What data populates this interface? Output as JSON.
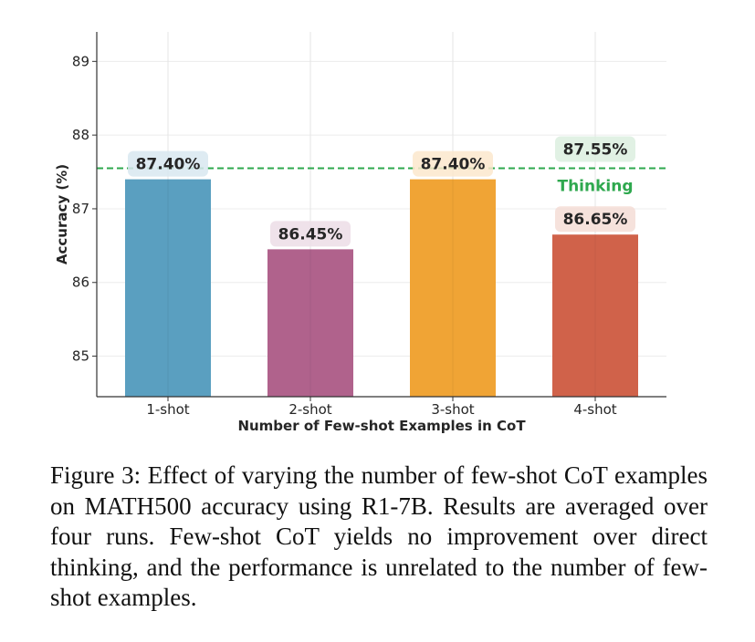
{
  "chart_data": {
    "type": "bar",
    "categories": [
      "1-shot",
      "2-shot",
      "3-shot",
      "4-shot"
    ],
    "values": [
      87.4,
      86.45,
      87.4,
      86.65
    ],
    "value_labels": [
      "87.40%",
      "86.45%",
      "87.40%",
      "86.65%"
    ],
    "colors": [
      "#5a9fc0",
      "#b0628c",
      "#f0a435",
      "#d0624a"
    ],
    "label_bg_colors": [
      "#d8e8f0",
      "#ecdde6",
      "#fbe8cc",
      "#f4ddd6"
    ],
    "xlabel": "Number of Few-shot Examples in CoT",
    "ylabel": "Accuracy (%)",
    "ylim": [
      84.45,
      89.4
    ],
    "yticks": [
      85,
      86,
      87,
      88,
      89
    ],
    "grid": true,
    "reference_line": {
      "value": 87.55,
      "value_label": "87.55%",
      "label": "Thinking",
      "color": "#2ea84e",
      "label_bg_color": "#dcefdf",
      "style": "dashed"
    }
  },
  "caption": "Figure 3: Effect of varying the number of few-shot CoT examples on MATH500 accuracy using R1-7B. Results are averaged over four runs. Few-shot CoT yields no improvement over direct thinking, and the performance is unrelated to the number of few-shot examples."
}
